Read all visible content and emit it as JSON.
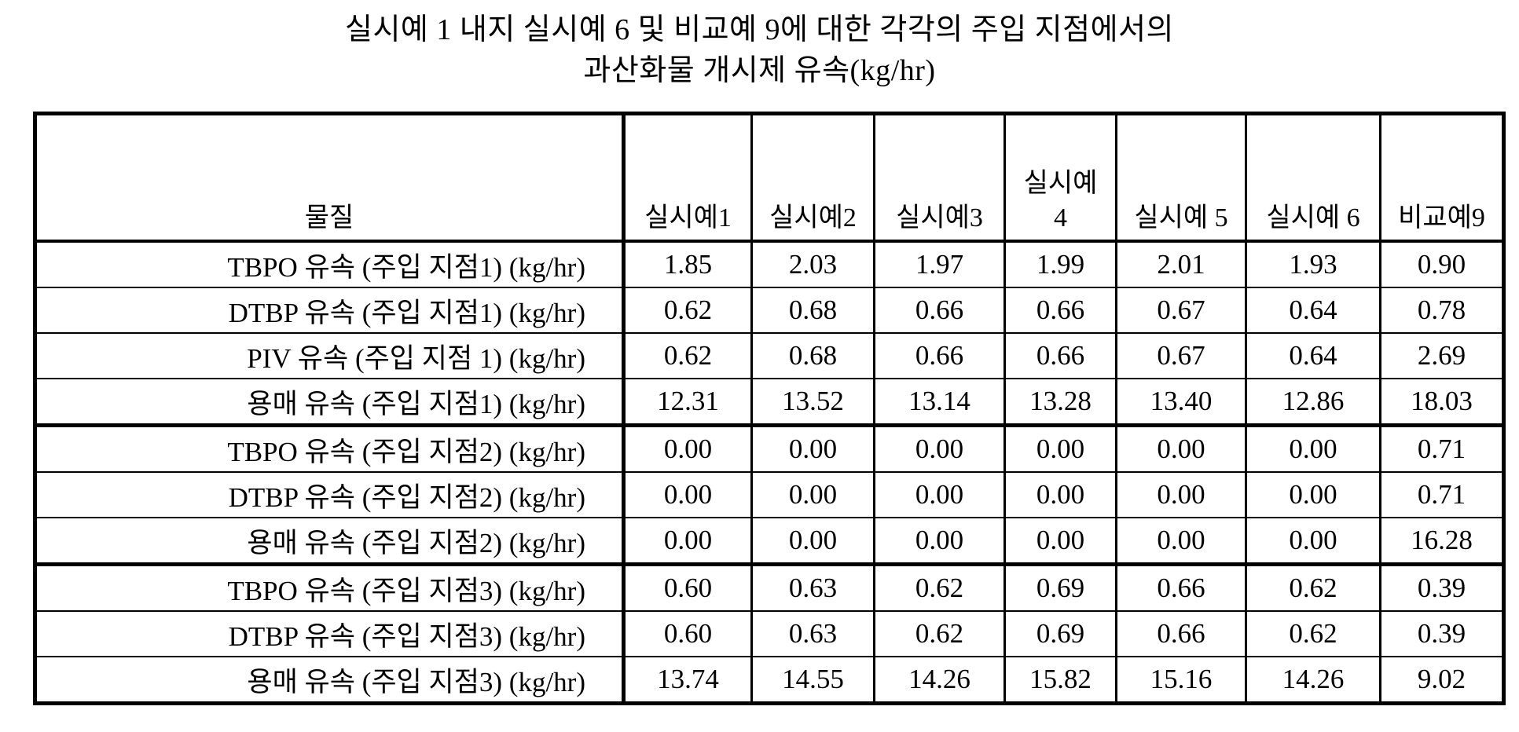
{
  "title": {
    "line1": "실시예 1 내지 실시예 6 및 비교예 9에 대한 각각의 주입 지점에서의",
    "line2": "과산화물 개시제 유속(kg/hr)"
  },
  "table": {
    "material_header": "물질",
    "columns": [
      "실시예1",
      "실시예2",
      "실시예3",
      "실시예\n4",
      "실시예 5",
      "실시예 6",
      "비교예9"
    ],
    "rows": [
      {
        "label": "TBPO 유속 (주입 지점1) (kg/hr)",
        "values": [
          "1.85",
          "2.03",
          "1.97",
          "1.99",
          "2.01",
          "1.93",
          "0.90"
        ]
      },
      {
        "label": "DTBP 유속 (주입 지점1) (kg/hr)",
        "values": [
          "0.62",
          "0.68",
          "0.66",
          "0.66",
          "0.67",
          "0.64",
          "0.78"
        ]
      },
      {
        "label": "PIV 유속 (주입 지점 1) (kg/hr)",
        "values": [
          "0.62",
          "0.68",
          "0.66",
          "0.66",
          "0.67",
          "0.64",
          "2.69"
        ]
      },
      {
        "label": "용매 유속 (주입 지점1) (kg/hr)",
        "values": [
          "12.31",
          "13.52",
          "13.14",
          "13.28",
          "13.40",
          "12.86",
          "18.03"
        ]
      },
      {
        "label": "TBPO 유속 (주입 지점2) (kg/hr)",
        "values": [
          "0.00",
          "0.00",
          "0.00",
          "0.00",
          "0.00",
          "0.00",
          "0.71"
        ]
      },
      {
        "label": "DTBP 유속 (주입 지점2) (kg/hr)",
        "values": [
          "0.00",
          "0.00",
          "0.00",
          "0.00",
          "0.00",
          "0.00",
          "0.71"
        ]
      },
      {
        "label": "용매 유속 (주입 지점2) (kg/hr)",
        "values": [
          "0.00",
          "0.00",
          "0.00",
          "0.00",
          "0.00",
          "0.00",
          "16.28"
        ]
      },
      {
        "label": "TBPO 유속 (주입 지점3) (kg/hr)",
        "values": [
          "0.60",
          "0.63",
          "0.62",
          "0.69",
          "0.66",
          "0.62",
          "0.39"
        ]
      },
      {
        "label": "DTBP 유속 (주입 지점3) (kg/hr)",
        "values": [
          "0.60",
          "0.63",
          "0.62",
          "0.69",
          "0.66",
          "0.62",
          "0.39"
        ]
      },
      {
        "label": "용매 유속 (주입 지점3) (kg/hr)",
        "values": [
          "13.74",
          "14.55",
          "14.26",
          "15.82",
          "15.16",
          "14.26",
          "9.02"
        ]
      }
    ]
  }
}
